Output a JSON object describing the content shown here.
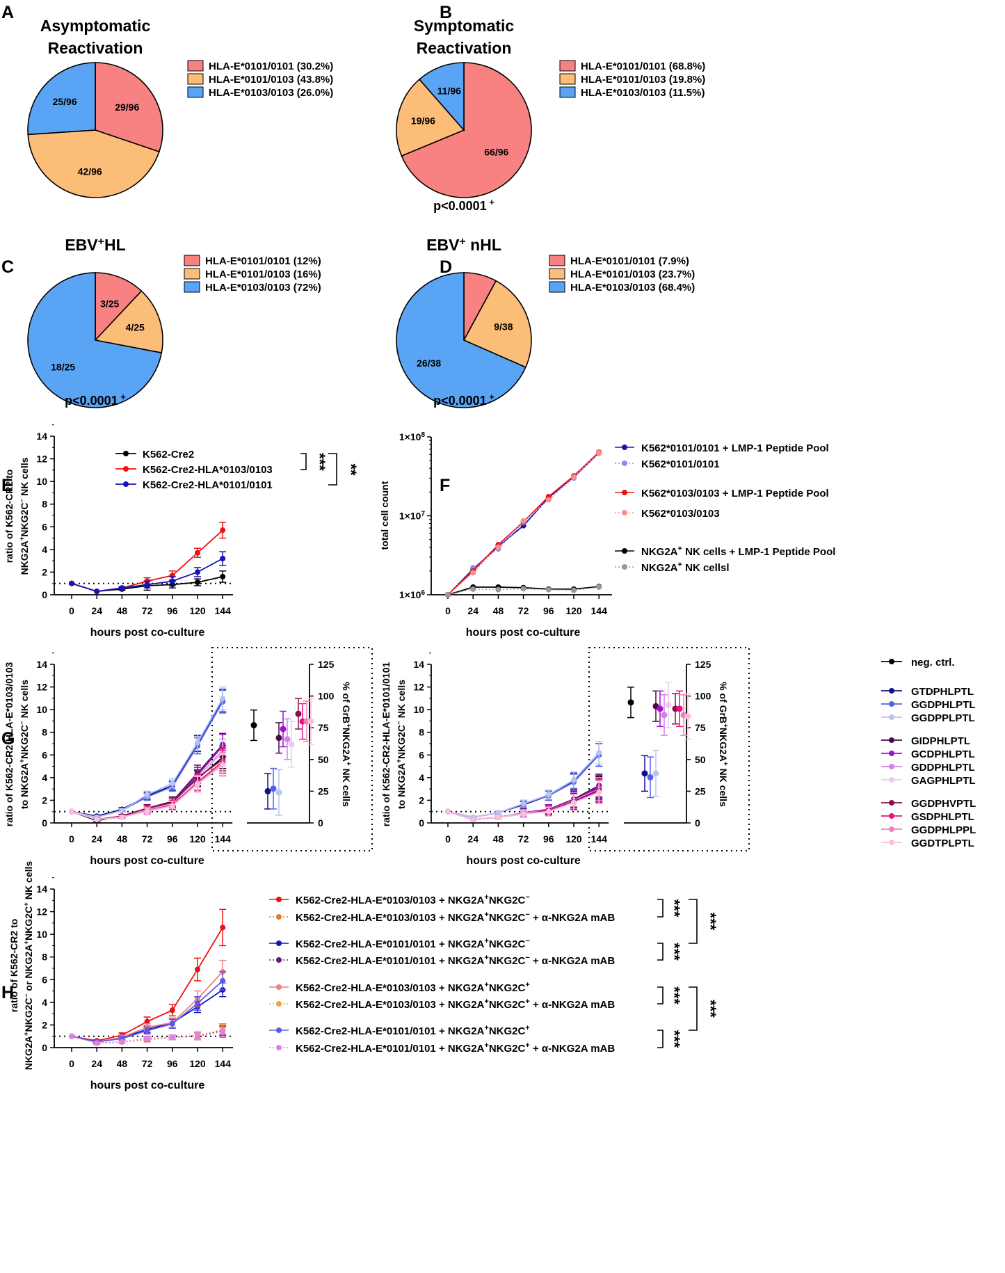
{
  "figure": {
    "panel_letters": [
      "A",
      "B",
      "C",
      "D",
      "E",
      "F",
      "G",
      "H"
    ],
    "colors": {
      "e0101": "#f88282",
      "het": "#fbbd78",
      "e0103": "#5aa4f6"
    }
  },
  "chart_data": [
    {
      "panel": "A",
      "type": "pie",
      "title": [
        "Asymptomatic",
        "Reactivation"
      ],
      "slices": [
        {
          "label": "29/96",
          "value": 29,
          "legend": "HLA-E*0101/0101 (30.2%)",
          "color": "#f88282"
        },
        {
          "label": "42/96",
          "value": 42,
          "legend": "HLA-E*0101/0103 (43.8%)",
          "color": "#fbbd78"
        },
        {
          "label": "25/96",
          "value": 25,
          "legend": "HLA-E*0103/0103 (26.0%)",
          "color": "#5aa4f6"
        }
      ],
      "pvalue": ""
    },
    {
      "panel": "B",
      "type": "pie",
      "title": [
        "Symptomatic",
        "Reactivation"
      ],
      "slices": [
        {
          "label": "66/96",
          "value": 66,
          "legend": "HLA-E*0101/0101 (68.8%)",
          "color": "#f88282"
        },
        {
          "label": "19/96",
          "value": 19,
          "legend": "HLA-E*0101/0103 (19.8%)",
          "color": "#fbbd78"
        },
        {
          "label": "11/96",
          "value": 11,
          "legend": "HLA-E*0103/0103 (11.5%)",
          "color": "#5aa4f6"
        }
      ],
      "pvalue": "p<0.0001",
      "psup": "+"
    },
    {
      "panel": "C",
      "type": "pie",
      "title_main": "EBV",
      "title_sup": "+",
      "title_rest": "HL",
      "slices": [
        {
          "label": "3/25",
          "value": 3,
          "legend": "HLA-E*0101/0101 (12%)",
          "color": "#f88282"
        },
        {
          "label": "4/25",
          "value": 4,
          "legend": "HLA-E*0101/0103 (16%)",
          "color": "#fbbd78"
        },
        {
          "label": "18/25",
          "value": 18,
          "legend": "HLA-E*0103/0103 (72%)",
          "color": "#5aa4f6"
        }
      ],
      "pvalue": "p<0.0001",
      "psup": "+"
    },
    {
      "panel": "D",
      "type": "pie",
      "title_main": "EBV",
      "title_sup": "+",
      "title_rest": " nHL",
      "slices": [
        {
          "label": "",
          "value": 3,
          "legend": "HLA-E*0101/0101 (7.9%)",
          "color": "#f88282"
        },
        {
          "label": "9/38",
          "value": 9,
          "legend": "HLA-E*0101/0103 (23.7%)",
          "color": "#fbbd78"
        },
        {
          "label": "26/38",
          "value": 26,
          "legend": "HLA-E*0103/0103 (68.4%)",
          "color": "#5aa4f6"
        }
      ],
      "pvalue": "p<0.0001",
      "psup": "+"
    },
    {
      "panel": "E",
      "type": "line",
      "x": [
        0,
        24,
        48,
        72,
        96,
        120,
        144
      ],
      "xlabel": "hours post co-culture",
      "ylabel": [
        "ratio of K562-CR2 to",
        "NKG2A+NKG2C- NK cells"
      ],
      "ylim": [
        0,
        14
      ],
      "yticks": [
        0,
        2,
        4,
        6,
        8,
        10,
        12,
        14
      ],
      "reference_line": 1,
      "series": [
        {
          "name": "K562-Cre2",
          "color": "#000000",
          "values": [
            1,
            0.3,
            0.5,
            0.8,
            0.9,
            1.1,
            1.6
          ],
          "err": [
            0,
            0,
            0.1,
            0.4,
            0.3,
            0.3,
            0.5
          ]
        },
        {
          "name": "K562-Cre2-HLA*0103/0103",
          "color": "#ee1111",
          "values": [
            1,
            0.3,
            0.6,
            1.2,
            1.7,
            3.7,
            5.7
          ],
          "err": [
            0,
            0,
            0.1,
            0.3,
            0.4,
            0.4,
            0.7
          ]
        },
        {
          "name": "K562-Cre2-HLA*0101/0101",
          "color": "#1414b8",
          "values": [
            1,
            0.3,
            0.6,
            0.9,
            1.2,
            2.0,
            3.2
          ],
          "err": [
            0,
            0,
            0.1,
            0.3,
            0.4,
            0.4,
            0.6
          ]
        }
      ],
      "significance": [
        "***",
        "**"
      ]
    },
    {
      "panel": "F",
      "type": "line",
      "yscale": "log",
      "x": [
        0,
        24,
        48,
        72,
        96,
        120,
        144
      ],
      "xlabel": "hours post co-culture",
      "ylabel": "total cell count",
      "ylim": [
        1000000,
        100000000
      ],
      "ytick_labels": [
        {
          "base": "1×10",
          "exp": "6"
        },
        {
          "base": "1×10",
          "exp": "7"
        },
        {
          "base": "1×10",
          "exp": "8"
        }
      ],
      "series": [
        {
          "name": "K562*0101/0101 + LMP-1 Peptide Pool",
          "color": "#1414b8",
          "dashed": false,
          "values": [
            1000000,
            2100000,
            4100000,
            7500000,
            17000000,
            31000000,
            63000000
          ]
        },
        {
          "name": "K562*0101/0101",
          "color": "#8c8cf0",
          "dashed": true,
          "values": [
            1000000,
            2200000,
            3800000,
            8200000,
            16000000,
            30000000,
            62000000
          ]
        },
        {
          "name": "K562*0103/0103 + LMP-1 Peptide Pool",
          "color": "#ee1111",
          "dashed": false,
          "values": [
            1000000,
            2000000,
            4300000,
            8400000,
            17500000,
            32000000,
            64000000
          ]
        },
        {
          "name": "K562*0103/0103",
          "color": "#f59090",
          "dashed": true,
          "values": [
            1000000,
            1900000,
            4000000,
            8600000,
            16000000,
            31000000,
            63000000
          ]
        },
        {
          "name": "NKG2A+ NK cells + LMP-1 Peptide Pool",
          "color": "#000000",
          "dashed": false,
          "values": [
            1000000,
            1250000,
            1250000,
            1230000,
            1180000,
            1180000,
            1270000
          ]
        },
        {
          "name": "NKG2A+ NK cellsl",
          "color": "#999999",
          "dashed": true,
          "values": [
            1000000,
            1180000,
            1160000,
            1190000,
            1160000,
            1140000,
            1250000
          ]
        }
      ]
    },
    {
      "panel": "G-left",
      "type": "line",
      "x": [
        0,
        24,
        48,
        72,
        96,
        120,
        144
      ],
      "xlabel": "hours post co-culture",
      "ylabel": [
        "ratio of K562-CR2-HLA-E*0103/0103",
        "to NKG2A+NKG2C- NK cells"
      ],
      "y2label": "% of GrB+NKG2A+ NK cells",
      "ylim": [
        0,
        14
      ],
      "y2lim": [
        0,
        125
      ],
      "series": [
        {
          "name": "neg. ctrl.",
          "color": "#000000",
          "values": [
            1,
            0.2,
            0.6,
            1.3,
            1.8,
            3.9,
            5.8
          ],
          "pct": 77
        },
        {
          "name": "GTDPHLPTL",
          "color": "#10108a",
          "values": [
            1,
            0.6,
            1.2,
            2.4,
            3.3,
            7.0,
            10.8
          ],
          "pct": 25
        },
        {
          "name": "GGDPHLPTL",
          "color": "#5060f0",
          "values": [
            1,
            0.5,
            1.1,
            2.3,
            3.2,
            6.8,
            10.7
          ],
          "pct": 27
        },
        {
          "name": "GGDPPLPTL",
          "color": "#b8c4f0",
          "values": [
            1,
            0.5,
            1.1,
            2.5,
            3.5,
            7.1,
            11.0
          ],
          "pct": 24
        },
        {
          "name": "GIDPHLPTL",
          "color": "#4a0c44",
          "values": [
            1,
            0.3,
            0.6,
            1.3,
            1.9,
            4.4,
            6.9
          ],
          "pct": 67
        },
        {
          "name": "GCDPHLPTL",
          "color": "#a010d0",
          "values": [
            1,
            0.3,
            0.6,
            1.2,
            1.8,
            4.2,
            6.8
          ],
          "pct": 74
        },
        {
          "name": "GDDPHLPTL",
          "color": "#d080e8",
          "values": [
            1,
            0.3,
            0.6,
            1.2,
            1.7,
            4.0,
            6.4
          ],
          "pct": 66
        },
        {
          "name": "GAGPHLPTL",
          "color": "#ecc8f4",
          "values": [
            1,
            0.3,
            0.6,
            1.1,
            1.7,
            4.0,
            6.2
          ],
          "pct": 62
        },
        {
          "name": "GGDPHVPTL",
          "color": "#8c0c4c",
          "values": [
            1,
            0.3,
            0.6,
            1.3,
            1.8,
            4.0,
            5.6
          ],
          "pct": 86
        },
        {
          "name": "GSDPHLPTL",
          "color": "#e8107c",
          "values": [
            1,
            0.3,
            0.5,
            1.1,
            1.6,
            3.6,
            5.4
          ],
          "pct": 80
        },
        {
          "name": "GGDPHLPPL",
          "color": "#f080b8",
          "values": [
            1,
            0.3,
            0.5,
            1.1,
            1.5,
            3.5,
            5.2
          ],
          "pct": 80
        },
        {
          "name": "GGDTPLPTL",
          "color": "#f8c0dc",
          "values": [
            1,
            0.3,
            0.5,
            1.0,
            1.5,
            3.4,
            5.1
          ],
          "pct": 80
        }
      ]
    },
    {
      "panel": "G-right",
      "type": "line",
      "x": [
        0,
        24,
        48,
        72,
        96,
        120,
        144
      ],
      "xlabel": "hours post co-culture",
      "ylabel": [
        "ratio of K562-CR2-HLA-E*0101/0101",
        "to NKG2A+NKG2C- NK cells"
      ],
      "y2label": "% of GrB+NKG2A+ NK cells",
      "ylim": [
        0,
        14
      ],
      "y2lim": [
        0,
        125
      ],
      "series": [
        {
          "name": "neg. ctrl.",
          "color": "#000000",
          "values": [
            1,
            0.3,
            0.5,
            0.8,
            1.2,
            2.0,
            3.1
          ],
          "pct": 95
        },
        {
          "name": "GTDPHLPTL",
          "color": "#10108a",
          "values": [
            1,
            0.5,
            0.9,
            1.6,
            2.4,
            3.7,
            6.0
          ],
          "pct": 39
        },
        {
          "name": "GGDPHLPTL",
          "color": "#5060f0",
          "values": [
            1,
            0.5,
            0.9,
            1.7,
            2.4,
            3.6,
            6.0
          ],
          "pct": 36
        },
        {
          "name": "GGDPPLPTL",
          "color": "#b8c4f0",
          "values": [
            1,
            0.5,
            0.9,
            1.7,
            2.5,
            3.8,
            6.2
          ],
          "pct": 39
        },
        {
          "name": "GIDPHLPTL",
          "color": "#4a0c44",
          "values": [
            1,
            0.3,
            0.5,
            0.9,
            1.2,
            2.1,
            3.3
          ],
          "pct": 92
        },
        {
          "name": "GCDPHLPTL",
          "color": "#a010d0",
          "values": [
            1,
            0.3,
            0.5,
            0.9,
            1.2,
            2.0,
            3.2
          ],
          "pct": 90
        },
        {
          "name": "GDDPHLPTL",
          "color": "#d080e8",
          "values": [
            1,
            0.3,
            0.5,
            0.9,
            1.1,
            2.0,
            3.0
          ],
          "pct": 85
        },
        {
          "name": "GAGPHLPTL",
          "color": "#ecc8f4",
          "values": [
            1,
            0.3,
            0.5,
            0.8,
            1.1,
            1.9,
            2.9
          ],
          "pct": 93
        },
        {
          "name": "GGDPHVPTL",
          "color": "#8c0c4c",
          "values": [
            1,
            0.3,
            0.5,
            0.8,
            1.1,
            1.9,
            2.9
          ],
          "pct": 90
        },
        {
          "name": "GSDPHLPTL",
          "color": "#e8107c",
          "values": [
            1,
            0.3,
            0.5,
            0.8,
            1.1,
            1.8,
            2.8
          ],
          "pct": 90
        },
        {
          "name": "GGDPHLPPL",
          "color": "#f080b8",
          "values": [
            1,
            0.3,
            0.5,
            0.8,
            1.0,
            1.8,
            2.7
          ],
          "pct": 85
        },
        {
          "name": "GGDTPLPTL",
          "color": "#f8c0dc",
          "values": [
            1,
            0.3,
            0.5,
            0.8,
            1.0,
            1.8,
            2.7
          ],
          "pct": 84
        }
      ]
    },
    {
      "panel": "H",
      "type": "line",
      "x": [
        0,
        24,
        48,
        72,
        96,
        120,
        144
      ],
      "xlabel": "hours post co-culture",
      "ylabel": [
        "ratio of K562-CR2 to",
        "NKG2A+NKG2C- or NKG2A+NKG2C+ NK cells"
      ],
      "ylim": [
        0,
        14
      ],
      "reference_line": 1,
      "series": [
        {
          "name": "K562-Cre2-HLA-E*0103/0103 + NKG2A+NKG2C-",
          "color": "#ee1111",
          "dashed": false,
          "values": [
            1,
            0.6,
            1.1,
            2.3,
            3.3,
            6.9,
            10.6
          ],
          "err": [
            0,
            0.1,
            0.2,
            0.4,
            0.5,
            1.0,
            1.6
          ]
        },
        {
          "name": "K562-Cre2-HLA-E*0103/0103 + NKG2A+NKG2C- + α-NKG2A mAB",
          "color": "#f07820",
          "dashed": true,
          "values": [
            1,
            0.4,
            0.5,
            0.7,
            0.9,
            1.0,
            1.5
          ],
          "err": [
            0,
            0.1,
            0.1,
            0.2,
            0.2,
            0.3,
            0.6
          ]
        },
        {
          "name": "K562-Cre2-HLA-E*0101/0101 + NKG2A+NKG2C-",
          "color": "#1414b8",
          "dashed": false,
          "values": [
            1,
            0.5,
            0.9,
            1.6,
            2.2,
            3.6,
            5.1
          ],
          "err": [
            0,
            0.1,
            0.2,
            0.3,
            0.4,
            0.5,
            0.6
          ]
        },
        {
          "name": "K562-Cre2-HLA-E*0101/0101 + NKG2A+NKG2C- + α-NKG2A mAB",
          "color": "#6a1a6a",
          "dashed": true,
          "values": [
            1,
            0.4,
            0.5,
            0.8,
            0.9,
            1.0,
            1.5
          ],
          "err": [
            0,
            0.1,
            0.1,
            0.2,
            0.2,
            0.3,
            0.4
          ]
        },
        {
          "name": "K562-Cre2-HLA-E*0103/0103 + NKG2A+NKG2C+",
          "color": "#f08080",
          "dashed": false,
          "values": [
            1,
            0.5,
            0.9,
            1.8,
            2.2,
            4.3,
            6.7
          ],
          "err": [
            0,
            0.1,
            0.2,
            0.3,
            0.4,
            0.7,
            1.0
          ]
        },
        {
          "name": "K562-Cre2-HLA-E*0103/0103 + NKG2A+NKG2C+ + α-NKG2A mAB",
          "color": "#f8a040",
          "dashed": true,
          "values": [
            1,
            0.4,
            0.5,
            0.8,
            0.9,
            1.1,
            1.6
          ],
          "err": [
            0,
            0.1,
            0.1,
            0.2,
            0.2,
            0.3,
            0.4
          ]
        },
        {
          "name": "K562-Cre2-HLA-E*0101/0101 + NKG2A+NKG2C+",
          "color": "#5a5ae8",
          "dashed": false,
          "values": [
            1,
            0.5,
            0.8,
            1.5,
            2.1,
            3.9,
            5.9
          ],
          "err": [
            0,
            0.1,
            0.2,
            0.3,
            0.4,
            0.6,
            0.8
          ]
        },
        {
          "name": "K562-Cre2-HLA-E*0101/0101 + NKG2A+NKG2C+ + α-NKG2A mAB",
          "color": "#e080e8",
          "dashed": true,
          "values": [
            1,
            0.4,
            0.5,
            0.8,
            0.9,
            1.0,
            1.4
          ],
          "err": [
            0,
            0.1,
            0.1,
            0.2,
            0.2,
            0.3,
            0.4
          ]
        }
      ],
      "significance": [
        "***",
        "***",
        "***",
        "***",
        "***",
        "***"
      ]
    }
  ]
}
